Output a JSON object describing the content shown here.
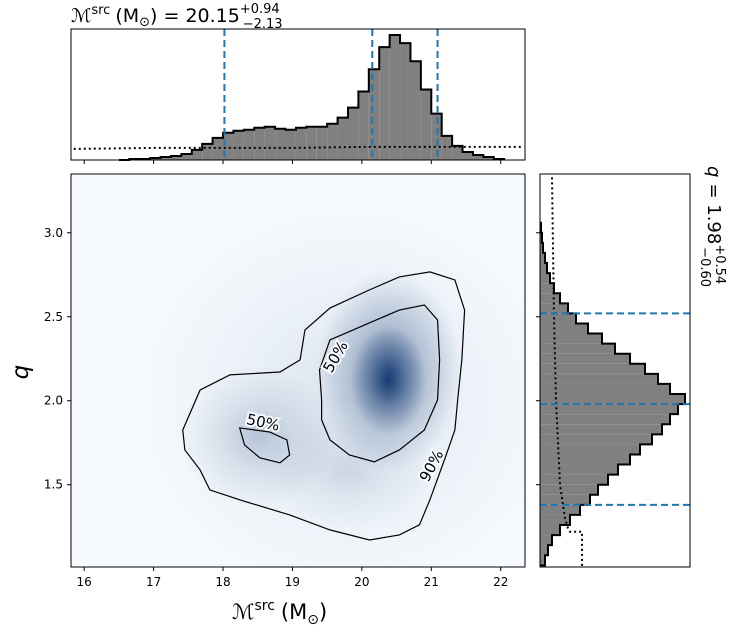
{
  "chart_data": {
    "type": "corner",
    "title": {
      "symbol": "ℳ",
      "sup": "src",
      "unit": "(M",
      "unit_sub": "⊙",
      "close": ") = 20.15",
      "upper": "+0.94",
      "lower": "−2.13"
    },
    "xlabel": {
      "symbol": "ℳ",
      "sup": "src",
      "unit": "(M",
      "unit_sub": "⊙",
      "close": ")"
    },
    "ylabel": "q",
    "ytitle": {
      "symbol": "q",
      "close": "= 1.98",
      "upper": "+0.54",
      "lower": "−0.60"
    },
    "xlim": [
      15.81,
      22.35
    ],
    "ylim": [
      1.01,
      3.35
    ],
    "xticks": [
      16,
      17,
      18,
      19,
      20,
      21,
      22
    ],
    "yticks": [
      {
        "value": 1.5,
        "label": "1.5"
      },
      {
        "value": 2,
        "label": "2.0"
      },
      {
        "value": 2.5,
        "label": "2.5"
      },
      {
        "value": 3,
        "label": "3.0"
      }
    ],
    "background": "#f7fbff",
    "density": {
      "color": "#08306b",
      "components": [
        {
          "x": 19.8,
          "y": 2.0,
          "sx": 1.3,
          "sy": 0.5,
          "weight": 0.12
        },
        {
          "x": 18.5,
          "y": 1.78,
          "sx": 0.45,
          "sy": 0.17,
          "weight": 0.22
        },
        {
          "x": 19.8,
          "y": 1.58,
          "sx": 0.5,
          "sy": 0.14,
          "weight": 0.12
        },
        {
          "x": 20.4,
          "y": 2.18,
          "sx": 0.42,
          "sy": 0.24,
          "weight": 0.55
        },
        {
          "x": 20.38,
          "y": 2.12,
          "sx": 0.22,
          "sy": 0.13,
          "weight": 0.85
        }
      ]
    },
    "contours": [
      {
        "label": "90%",
        "x": [
          17.42,
          17.67,
          18.1,
          18.82,
          19.11,
          19.18,
          19.54,
          20.11,
          20.54,
          20.98,
          21.34,
          21.48,
          21.44,
          21.38,
          21.34,
          21.19,
          20.98,
          20.83,
          20.54,
          20.11,
          19.54,
          18.96,
          18.24,
          17.81,
          17.67,
          17.45
        ],
        "y": [
          1.826,
          2.064,
          2.154,
          2.171,
          2.243,
          2.421,
          2.552,
          2.66,
          2.737,
          2.767,
          2.719,
          2.54,
          2.243,
          2.005,
          1.826,
          1.648,
          1.41,
          1.261,
          1.201,
          1.171,
          1.231,
          1.32,
          1.41,
          1.469,
          1.588,
          1.707
        ]
      },
      {
        "label": "50%",
        "x": [
          19.42,
          19.39,
          19.54,
          20.04,
          20.54,
          20.9,
          21.09,
          21.12,
          21.09,
          20.9,
          20.54,
          20.18,
          19.82,
          19.54,
          19.42
        ],
        "y": [
          2.005,
          2.183,
          2.362,
          2.451,
          2.54,
          2.57,
          2.481,
          2.243,
          2.005,
          1.826,
          1.707,
          1.636,
          1.677,
          1.767,
          1.886
        ]
      },
      {
        "label": "50%",
        "x": [
          18.24,
          18.31,
          18.53,
          18.82,
          18.96,
          18.92,
          18.67
        ],
        "y": [
          1.838,
          1.737,
          1.66,
          1.63,
          1.677,
          1.767,
          1.814
        ]
      }
    ],
    "x_hist": {
      "ylim": [
        0,
        130
      ],
      "bins": [
        16.5,
        16.65,
        16.8,
        16.95,
        17.1,
        17.25,
        17.4,
        17.55,
        17.7,
        17.85,
        18.0,
        18.15,
        18.3,
        18.45,
        18.6,
        18.75,
        18.9,
        19.05,
        19.2,
        19.35,
        19.5,
        19.65,
        19.8,
        19.95,
        20.1,
        20.25,
        20.4,
        20.55,
        20.7,
        20.85,
        21.0,
        21.15,
        21.3,
        21.45,
        21.6,
        21.75,
        21.9,
        22.05
      ],
      "counts": [
        0,
        1,
        1,
        2,
        3,
        4,
        6,
        10,
        16,
        22,
        27,
        29,
        30,
        32,
        33,
        31,
        30,
        32,
        33,
        33,
        36,
        42,
        52,
        68,
        90,
        112,
        124,
        116,
        98,
        70,
        46,
        24,
        14,
        8,
        5,
        3,
        1
      ],
      "color": "#808080",
      "prior": {
        "x": [
          15.85,
          17,
          18,
          19,
          20,
          21,
          22.3
        ],
        "values": [
          11,
          12,
          12,
          12,
          13,
          13,
          13
        ]
      },
      "quantiles": [
        18.02,
        20.15,
        21.09
      ]
    },
    "y_hist": {
      "xlim": [
        0,
        150
      ],
      "bins": [
        1.02,
        1.08,
        1.14,
        1.2,
        1.26,
        1.32,
        1.38,
        1.44,
        1.5,
        1.56,
        1.62,
        1.68,
        1.74,
        1.8,
        1.86,
        1.92,
        1.98,
        2.04,
        2.1,
        2.16,
        2.22,
        2.28,
        2.34,
        2.4,
        2.46,
        2.52,
        2.58,
        2.64,
        2.7,
        2.76,
        2.82,
        2.88,
        2.94,
        3.0,
        3.06
      ],
      "counts": [
        5,
        8,
        12,
        20,
        30,
        40,
        50,
        58,
        68,
        78,
        90,
        100,
        112,
        122,
        130,
        138,
        145,
        130,
        118,
        105,
        90,
        75,
        62,
        48,
        36,
        28,
        20,
        14,
        10,
        7,
        5,
        3,
        2,
        1
      ],
      "color": "#808080",
      "prior": {
        "y": [
          3.33,
          2.5,
          2.0,
          1.5,
          1.3,
          1.24,
          1.22,
          1.22,
          1.01
        ],
        "values": [
          12,
          14,
          16,
          20,
          25,
          28,
          30,
          42,
          42
        ]
      },
      "quantiles": [
        1.38,
        1.98,
        2.52
      ]
    },
    "quantile_color": "#1f77b4"
  }
}
